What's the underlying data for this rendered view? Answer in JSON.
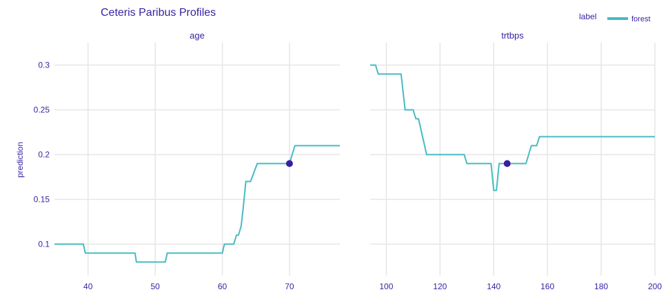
{
  "title": "Ceteris Paribus Profiles",
  "ylabel": "prediction",
  "legend": {
    "title": "label",
    "entries": [
      {
        "name": "forest",
        "color": "#46bac2"
      }
    ]
  },
  "colors": {
    "text": "#371ea3",
    "line": "#46bac2",
    "point": "#371ea3",
    "grid": "#e6e6e6"
  },
  "chart_data": [
    {
      "type": "line",
      "panel_title": "age",
      "series_name": "forest",
      "xlim": [
        35,
        77.5
      ],
      "ylim": [
        0.065,
        0.325
      ],
      "xticks": [
        40,
        50,
        60,
        70
      ],
      "yticks": [
        0.1,
        0.15,
        0.2,
        0.25,
        0.3
      ],
      "ytick_labels": [
        "0.1",
        "0.15",
        "0.2",
        "0.25",
        "0.3"
      ],
      "x": [
        35,
        39.3,
        39.6,
        47,
        47.2,
        51.5,
        51.8,
        60,
        60.3,
        61.7,
        62.1,
        62.4,
        62.8,
        63.1,
        63.5,
        64.2,
        65.2,
        70,
        70.8,
        77.5
      ],
      "y": [
        0.1,
        0.1,
        0.09,
        0.09,
        0.08,
        0.08,
        0.09,
        0.09,
        0.1,
        0.1,
        0.11,
        0.11,
        0.12,
        0.14,
        0.17,
        0.17,
        0.19,
        0.19,
        0.21,
        0.21
      ],
      "observation": {
        "x": 70,
        "y": 0.19
      }
    },
    {
      "type": "line",
      "panel_title": "trtbps",
      "series_name": "forest",
      "xlim": [
        94,
        200
      ],
      "ylim": [
        0.065,
        0.325
      ],
      "xticks": [
        100,
        120,
        140,
        160,
        180,
        200
      ],
      "yticks": [
        0.1,
        0.15,
        0.2,
        0.25,
        0.3
      ],
      "ytick_labels": [
        "0.1",
        "0.15",
        "0.2",
        "0.25",
        "0.3"
      ],
      "x": [
        94,
        96,
        97,
        105.5,
        107,
        110,
        111,
        111.5,
        112,
        115,
        129,
        130,
        139,
        140,
        141,
        142,
        143,
        146,
        152,
        154,
        156,
        157,
        200
      ],
      "y": [
        0.3,
        0.3,
        0.29,
        0.29,
        0.25,
        0.25,
        0.24,
        0.24,
        0.24,
        0.2,
        0.2,
        0.19,
        0.19,
        0.16,
        0.16,
        0.19,
        0.19,
        0.19,
        0.19,
        0.21,
        0.21,
        0.22,
        0.22
      ],
      "observation": {
        "x": 145,
        "y": 0.19
      }
    }
  ]
}
